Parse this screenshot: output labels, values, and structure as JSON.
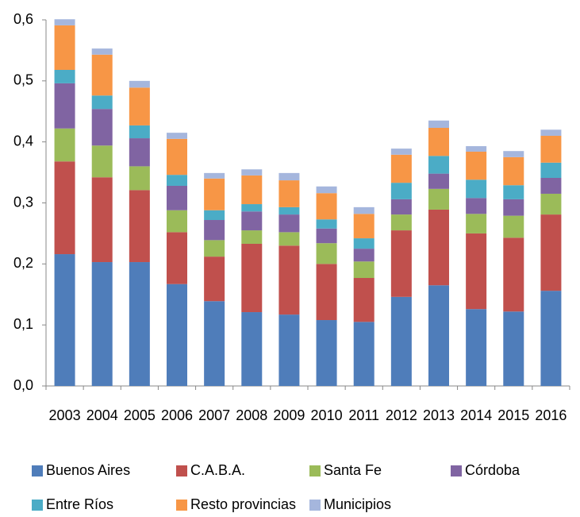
{
  "chart_data": {
    "type": "stacked_bar",
    "categories": [
      "2003",
      "2004",
      "2005",
      "2006",
      "2007",
      "2008",
      "2009",
      "2010",
      "2011",
      "2012",
      "2013",
      "2014",
      "2015",
      "2016"
    ],
    "series": [
      {
        "name": "Buenos Aires",
        "color": "#4f7dba",
        "values": [
          0.216,
          0.203,
          0.203,
          0.167,
          0.139,
          0.121,
          0.117,
          0.108,
          0.105,
          0.146,
          0.165,
          0.126,
          0.122,
          0.156
        ]
      },
      {
        "name": "C.A.B.A.",
        "color": "#c0504d",
        "values": [
          0.152,
          0.139,
          0.118,
          0.085,
          0.073,
          0.112,
          0.113,
          0.092,
          0.072,
          0.109,
          0.124,
          0.124,
          0.121,
          0.125
        ]
      },
      {
        "name": "Santa Fe",
        "color": "#9bbb59",
        "values": [
          0.054,
          0.052,
          0.039,
          0.036,
          0.027,
          0.022,
          0.022,
          0.034,
          0.027,
          0.026,
          0.034,
          0.032,
          0.036,
          0.034
        ]
      },
      {
        "name": "Córdoba",
        "color": "#8064a2",
        "values": [
          0.074,
          0.06,
          0.046,
          0.04,
          0.033,
          0.031,
          0.029,
          0.024,
          0.021,
          0.025,
          0.025,
          0.026,
          0.027,
          0.026
        ]
      },
      {
        "name": "Entre Ríos",
        "color": "#4bacc6",
        "values": [
          0.022,
          0.022,
          0.021,
          0.018,
          0.016,
          0.012,
          0.012,
          0.015,
          0.017,
          0.027,
          0.029,
          0.03,
          0.023,
          0.025
        ]
      },
      {
        "name": "Resto provincias",
        "color": "#f79646",
        "values": [
          0.073,
          0.067,
          0.062,
          0.059,
          0.052,
          0.047,
          0.044,
          0.043,
          0.04,
          0.046,
          0.046,
          0.046,
          0.046,
          0.044
        ]
      },
      {
        "name": "Municipios",
        "color": "#a5b6dd",
        "values": [
          0.01,
          0.01,
          0.011,
          0.01,
          0.009,
          0.01,
          0.012,
          0.011,
          0.011,
          0.01,
          0.012,
          0.009,
          0.01,
          0.01
        ]
      }
    ],
    "ylim": [
      0,
      0.6
    ],
    "yticks": [
      {
        "value": 0,
        "label": "0,0"
      },
      {
        "value": 0.1,
        "label": "0,1"
      },
      {
        "value": 0.2,
        "label": "0,2"
      },
      {
        "value": 0.3,
        "label": "0,3"
      },
      {
        "value": 0.4,
        "label": "0,4"
      },
      {
        "value": 0.5,
        "label": "0,5"
      },
      {
        "value": 0.6,
        "label": "0,6"
      }
    ],
    "legend": "bottom"
  }
}
